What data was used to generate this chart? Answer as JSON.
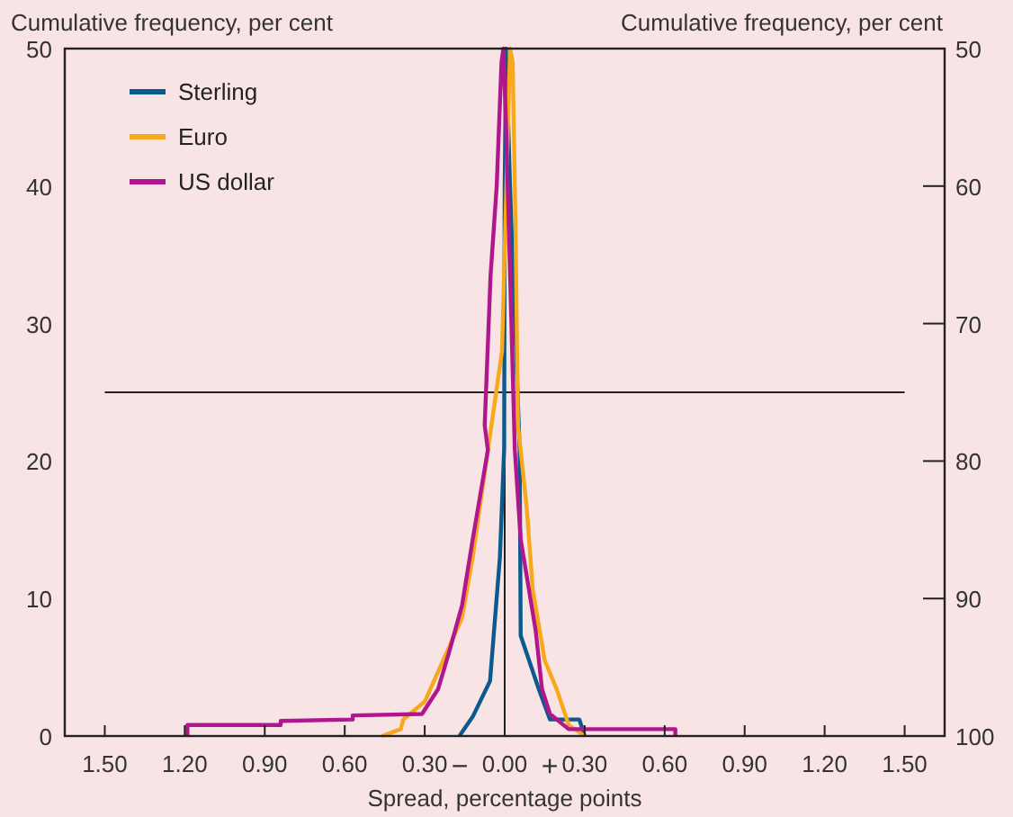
{
  "chart_data": {
    "type": "line",
    "xlabel": "Spread, percentage points",
    "ylabel": "Cumulative frequency, per cent",
    "y2label": "Cumulative frequency, per cent",
    "xlim": [
      -1.65,
      1.65
    ],
    "xticks": [
      {
        "value": -1.5,
        "label": "1.50"
      },
      {
        "value": -1.2,
        "label": "1.20"
      },
      {
        "value": -0.9,
        "label": "0.90"
      },
      {
        "value": -0.6,
        "label": "0.60"
      },
      {
        "value": -0.3,
        "label": "0.30"
      },
      {
        "value": 0,
        "label": "0.00"
      },
      {
        "value": 0.3,
        "label": "0.30"
      },
      {
        "value": 0.6,
        "label": "0.60"
      },
      {
        "value": 0.9,
        "label": "0.90"
      },
      {
        "value": 1.2,
        "label": "1.20"
      },
      {
        "value": 1.5,
        "label": "1.50"
      }
    ],
    "ylim": [
      0,
      50
    ],
    "yticks": [
      0,
      10,
      20,
      30,
      40,
      50
    ],
    "y2lim": [
      100,
      50
    ],
    "y2ticks": [
      50,
      60,
      70,
      80,
      90,
      100
    ],
    "legend": "top left",
    "grid": false,
    "ref_lines": [
      {
        "axis": "y",
        "value": 25,
        "color": "#222222"
      },
      {
        "axis": "x",
        "value": 0,
        "color": "#222222"
      }
    ],
    "annotations": [
      "−",
      "+"
    ],
    "series": [
      {
        "name": "Sterling",
        "color": "#0a5a8f",
        "x": [
          -0.17,
          -0.12,
          -0.055,
          -0.018,
          -0.002,
          0.0,
          0.005,
          0.02,
          0.056,
          0.06,
          0.128,
          0.17,
          0.28,
          0.3
        ],
        "values": [
          0,
          1.4,
          4,
          13,
          20.9,
          40,
          50,
          40,
          20.9,
          7.3,
          3.4,
          1.2,
          1.2,
          0
        ]
      },
      {
        "name": "Euro",
        "color": "#f7a81b",
        "x": [
          -0.46,
          -0.39,
          -0.38,
          -0.3,
          -0.21,
          -0.16,
          -0.12,
          -0.063,
          -0.01,
          0.02,
          0.03,
          0.04,
          0.05,
          0.083,
          0.105,
          0.15,
          0.195,
          0.24,
          0.3
        ],
        "values": [
          0,
          0.5,
          1.2,
          2.5,
          6.4,
          8.6,
          13,
          20.8,
          28,
          50,
          49,
          37.8,
          22.6,
          16.5,
          10.7,
          5.5,
          3.4,
          0.8,
          0
        ]
      },
      {
        "name": "US dollar",
        "color": "#b1178c",
        "x": [
          -1.19,
          -1.19,
          -0.84,
          -0.84,
          -0.57,
          -0.57,
          -0.31,
          -0.25,
          -0.21,
          -0.16,
          -0.12,
          -0.063,
          -0.075,
          -0.053,
          -0.03,
          -0.012,
          -0.005,
          0.005,
          0.038,
          0.06,
          0.116,
          0.14,
          0.17,
          0.24,
          0.64,
          0.64
        ],
        "values": [
          0,
          0.8,
          0.8,
          1.1,
          1.2,
          1.5,
          1.6,
          3.4,
          6,
          9.5,
          14.3,
          20.8,
          22.6,
          33.5,
          40,
          49,
          50,
          44.5,
          20.8,
          14.3,
          7.7,
          3.4,
          1.6,
          0.5,
          0.5,
          0
        ]
      }
    ]
  }
}
